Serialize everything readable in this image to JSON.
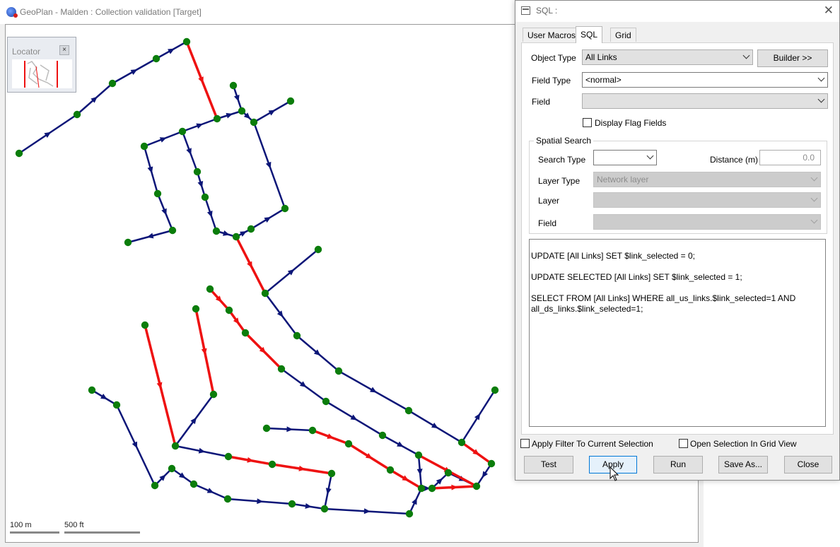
{
  "geoplan": {
    "title": "GeoPlan - Malden : Collection validation  [Target]",
    "locator": {
      "title": "Locator",
      "close": "×"
    },
    "scale": {
      "metric": "100 m",
      "imperial": "500 ft"
    },
    "colors": {
      "link": "#0c1678",
      "selected_link": "#ee1111",
      "node": "#0b7d0b"
    }
  },
  "sql_dialog": {
    "title": "SQL :",
    "close": "✕",
    "tabs": [
      {
        "label": "User Macros",
        "active": false
      },
      {
        "label": "SQL",
        "active": true
      },
      {
        "label": "Grid",
        "active": false
      }
    ],
    "object_type": {
      "label": "Object Type",
      "value": "All Links",
      "builder_button": "Builder >>"
    },
    "field_type": {
      "label": "Field Type",
      "value": "<normal>"
    },
    "field": {
      "label": "Field",
      "value": ""
    },
    "display_flag_fields": {
      "label": "Display Flag Fields",
      "checked": false
    },
    "spatial_search": {
      "title": "Spatial Search",
      "search_type_label": "Search Type",
      "search_type_value": "",
      "distance_label": "Distance (m)",
      "distance_value": "0.0",
      "layer_type_label": "Layer Type",
      "layer_type_value": "Network layer",
      "layer_label": "Layer",
      "layer_value": "",
      "field_label": "Field",
      "field_value": ""
    },
    "sql_lines": [
      "UPDATE [All Links] SET $link_selected = 0;",
      "UPDATE SELECTED [All Links] SET $link_selected = 1;",
      "SELECT FROM [All Links] WHERE all_us_links.$link_selected=1 AND all_ds_links.$link_selected=1;"
    ],
    "options": {
      "apply_filter": {
        "label": "Apply Filter To Current Selection",
        "checked": false
      },
      "open_grid": {
        "label": "Open Selection In Grid View",
        "checked": false
      }
    },
    "buttons": {
      "test": "Test",
      "apply": "Apply",
      "run": "Run",
      "save_as": "Save As...",
      "close": "Close"
    }
  }
}
